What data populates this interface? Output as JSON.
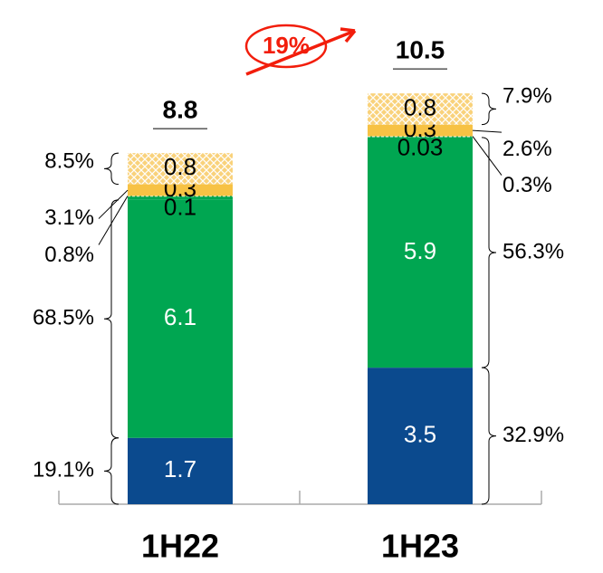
{
  "chart_data": {
    "type": "stacked-bar",
    "categories": [
      "1H22",
      "1H23"
    ],
    "totals": [
      8.8,
      10.5
    ],
    "annotation": "19%",
    "series": [
      {
        "color": "#0b4a8e",
        "values": [
          1.7,
          3.5
        ],
        "shares": [
          19.1,
          32.9
        ],
        "share_labels": [
          "19.1%",
          "32.9%"
        ]
      },
      {
        "color": "#00a651",
        "values": [
          6.1,
          5.9
        ],
        "shares": [
          68.5,
          56.3
        ],
        "share_labels": [
          "68.5%",
          "56.3%"
        ]
      },
      {
        "color": "#00a651",
        "values": [
          0.1,
          0.03
        ],
        "shares": [
          0.8,
          0.3
        ],
        "share_labels": [
          "0.8%",
          "0.3%"
        ]
      },
      {
        "color": "#f7c244",
        "values": [
          0.3,
          0.3
        ],
        "shares": [
          3.1,
          2.6
        ],
        "share_labels": [
          "3.1%",
          "2.6%"
        ]
      },
      {
        "color": "#f9d27b",
        "values": [
          0.8,
          0.8
        ],
        "shares": [
          8.5,
          7.9
        ],
        "share_labels": [
          "8.5%",
          "7.9%"
        ]
      }
    ]
  }
}
